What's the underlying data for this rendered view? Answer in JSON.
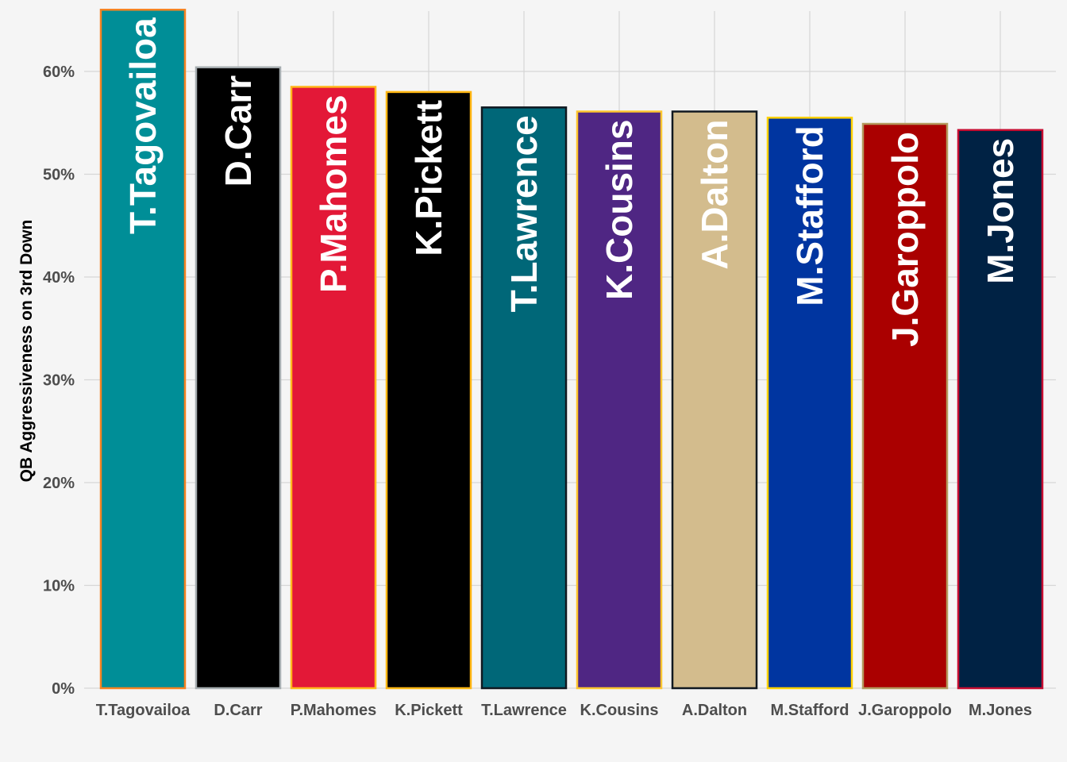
{
  "chart_data": {
    "type": "bar",
    "ylabel": "QB Aggressiveness on 3rd Down",
    "xlabel": "",
    "ylim": [
      0,
      66
    ],
    "yticks": [
      0,
      10,
      20,
      30,
      40,
      50,
      60
    ],
    "ytick_labels": [
      "0%",
      "10%",
      "20%",
      "30%",
      "40%",
      "50%",
      "60%"
    ],
    "grid": true,
    "categories": [
      "T.Tagovailoa",
      "D.Carr",
      "P.Mahomes",
      "K.Pickett",
      "T.Lawrence",
      "K.Cousins",
      "A.Dalton",
      "M.Stafford",
      "J.Garoppolo",
      "M.Jones"
    ],
    "values": [
      66.0,
      60.4,
      58.5,
      58.0,
      56.5,
      56.1,
      56.1,
      55.5,
      54.9,
      54.3
    ],
    "fill_colors": [
      "#008E97",
      "#000000",
      "#E31837",
      "#000000",
      "#006778",
      "#4F2683",
      "#D3BC8D",
      "#0035A0",
      "#AA0000",
      "#002244"
    ],
    "outline_colors": [
      "#F58220",
      "#A5ACAF",
      "#FFB81C",
      "#FFB612",
      "#101820",
      "#FFC62F",
      "#101820",
      "#FFD100",
      "#B3995D",
      "#C60C30"
    ]
  }
}
